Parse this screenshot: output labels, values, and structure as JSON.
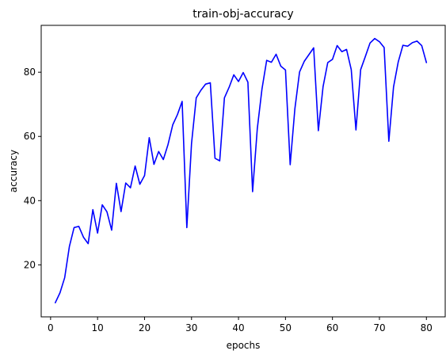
{
  "chart_data": {
    "type": "line",
    "title": "train-obj-accuracy",
    "xlabel": "epochs",
    "ylabel": "accuracy",
    "xlim": [
      -2,
      84
    ],
    "ylim": [
      3.8,
      94.6
    ],
    "xticks": [
      0,
      10,
      20,
      30,
      40,
      50,
      60,
      70,
      80
    ],
    "yticks": [
      20,
      40,
      60,
      80
    ],
    "grid": false,
    "series": [
      {
        "color": "#0000ff",
        "x": [
          1,
          2,
          3,
          4,
          5,
          6,
          7,
          8,
          9,
          10,
          11,
          12,
          13,
          14,
          15,
          16,
          17,
          18,
          19,
          20,
          21,
          22,
          23,
          24,
          25,
          26,
          27,
          28,
          29,
          30,
          31,
          32,
          33,
          34,
          35,
          36,
          37,
          38,
          39,
          40,
          41,
          42,
          43,
          44,
          45,
          46,
          47,
          48,
          49,
          50,
          51,
          52,
          53,
          54,
          55,
          56,
          57,
          58,
          59,
          60,
          61,
          62,
          63,
          64,
          65,
          66,
          67,
          68,
          69,
          70,
          71,
          72,
          73,
          74,
          75,
          76,
          77,
          78,
          79,
          80
        ],
        "values": [
          8.2,
          11.3,
          16.0,
          25.7,
          31.6,
          32.0,
          28.6,
          26.6,
          37.2,
          29.9,
          38.7,
          36.5,
          30.8,
          45.4,
          36.6,
          45.5,
          44.0,
          50.8,
          45.1,
          47.8,
          59.6,
          51.3,
          55.3,
          52.8,
          57.5,
          63.6,
          66.8,
          70.9,
          31.6,
          57.8,
          72.0,
          74.4,
          76.3,
          76.7,
          53.2,
          52.4,
          72.0,
          75.3,
          79.2,
          77.1,
          79.9,
          76.9,
          42.8,
          62.4,
          74.8,
          83.7,
          83.1,
          85.6,
          81.9,
          80.7,
          51.2,
          68.6,
          80.1,
          83.4,
          85.5,
          87.6,
          61.8,
          75.5,
          83.0,
          84.0,
          88.3,
          86.4,
          87.1,
          80.8,
          62.0,
          80.8,
          84.9,
          89.1,
          90.5,
          89.5,
          87.7,
          58.5,
          75.4,
          83.2,
          88.4,
          88.1,
          89.2,
          89.7,
          88.3,
          83.0
        ]
      }
    ]
  }
}
